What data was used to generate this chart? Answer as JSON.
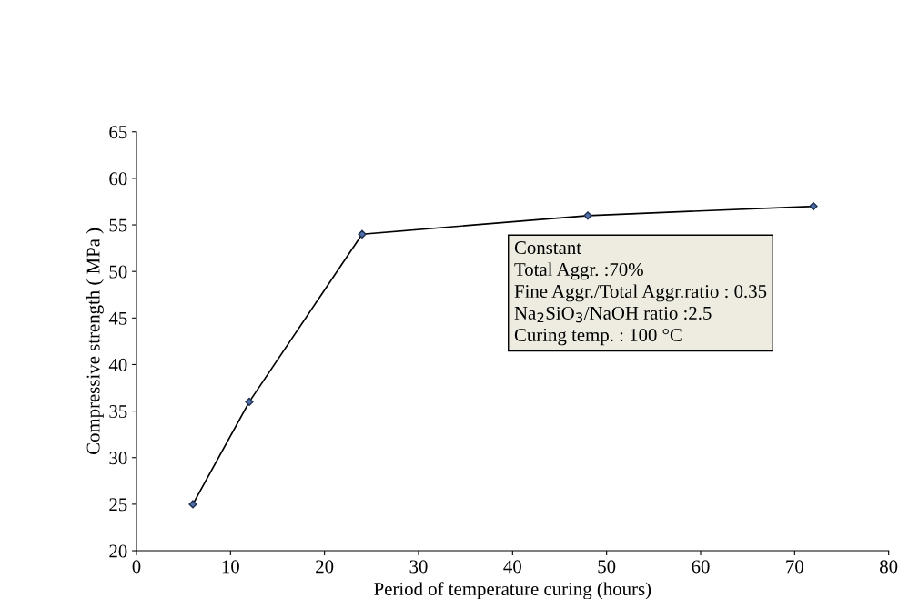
{
  "chart_data": {
    "type": "line",
    "xlabel": "Period of temperature curing (hours)",
    "ylabel": "Compressive strength ( MPa )",
    "x": [
      6,
      12,
      24,
      48,
      72
    ],
    "series": [
      {
        "color": "#000000",
        "values": [
          25,
          36,
          54,
          56,
          57
        ]
      }
    ],
    "xlim": [
      0,
      80
    ],
    "xticks": [
      0,
      10,
      20,
      30,
      40,
      50,
      60,
      70,
      80
    ],
    "ylim": [
      20,
      65
    ],
    "yticks": [
      20,
      25,
      30,
      35,
      40,
      45,
      50,
      55,
      60,
      65
    ],
    "marker": "diamond",
    "line_style": "solid",
    "grid": false,
    "legend": false,
    "annotations": [
      "Constant\nTotal Aggr. :70%\nFine Aggr./Total Aggr.ratio : 0.35\nNa$_{2}$SiO$_{3}$/NaOH ratio :2.5\nCuring temp. : 100 °C"
    ]
  }
}
